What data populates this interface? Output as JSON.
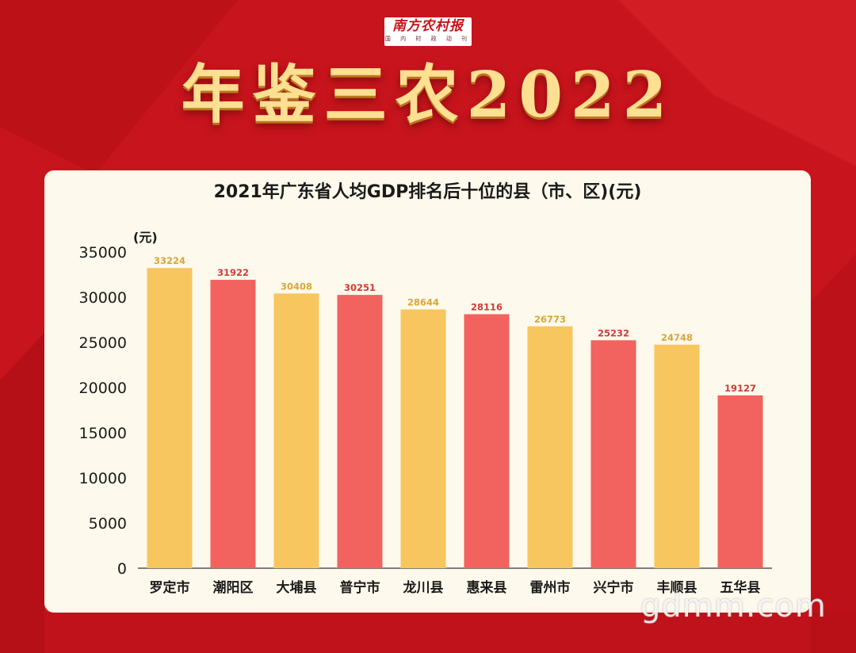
{
  "header": {
    "logo_text": "南方农村报",
    "logo_sub": "国 内 时 政 动 刊",
    "headline": "年鉴三农2022"
  },
  "watermark": "gdmm.com",
  "colors": {
    "background": "#c8141c",
    "panel": "#fdf9ec",
    "bar_yellow": "#f8c65e",
    "bar_red": "#f2625f",
    "label_yellow": "#d8a63a",
    "label_red": "#d23a37"
  },
  "chart_data": {
    "type": "bar",
    "title": "2021年广东省人均GDP排名后十位的县（市、区)(元)",
    "ylabel": "(元)",
    "xlabel": "",
    "ylim": [
      0,
      35000
    ],
    "yticks": [
      0,
      5000,
      10000,
      15000,
      20000,
      25000,
      30000,
      35000
    ],
    "grid": false,
    "categories": [
      "罗定市",
      "潮阳区",
      "大埔县",
      "普宁市",
      "龙川县",
      "惠来县",
      "雷州市",
      "兴宁市",
      "丰顺县",
      "五华县"
    ],
    "values": [
      33224,
      31922,
      30408,
      30251,
      28644,
      28116,
      26773,
      25232,
      24748,
      19127
    ],
    "value_labels": [
      "33224",
      "31922",
      "30408",
      "30251",
      "28644",
      "28116",
      "26773",
      "25232",
      "24748",
      "19127"
    ],
    "bar_colors": [
      "#f8c65e",
      "#f2625f",
      "#f8c65e",
      "#f2625f",
      "#f8c65e",
      "#f2625f",
      "#f8c65e",
      "#f2625f",
      "#f8c65e",
      "#f2625f"
    ],
    "label_colors": [
      "#d8a63a",
      "#d23a37",
      "#d8a63a",
      "#d23a37",
      "#d8a63a",
      "#d23a37",
      "#d8a63a",
      "#d23a37",
      "#d8a63a",
      "#d23a37"
    ]
  }
}
